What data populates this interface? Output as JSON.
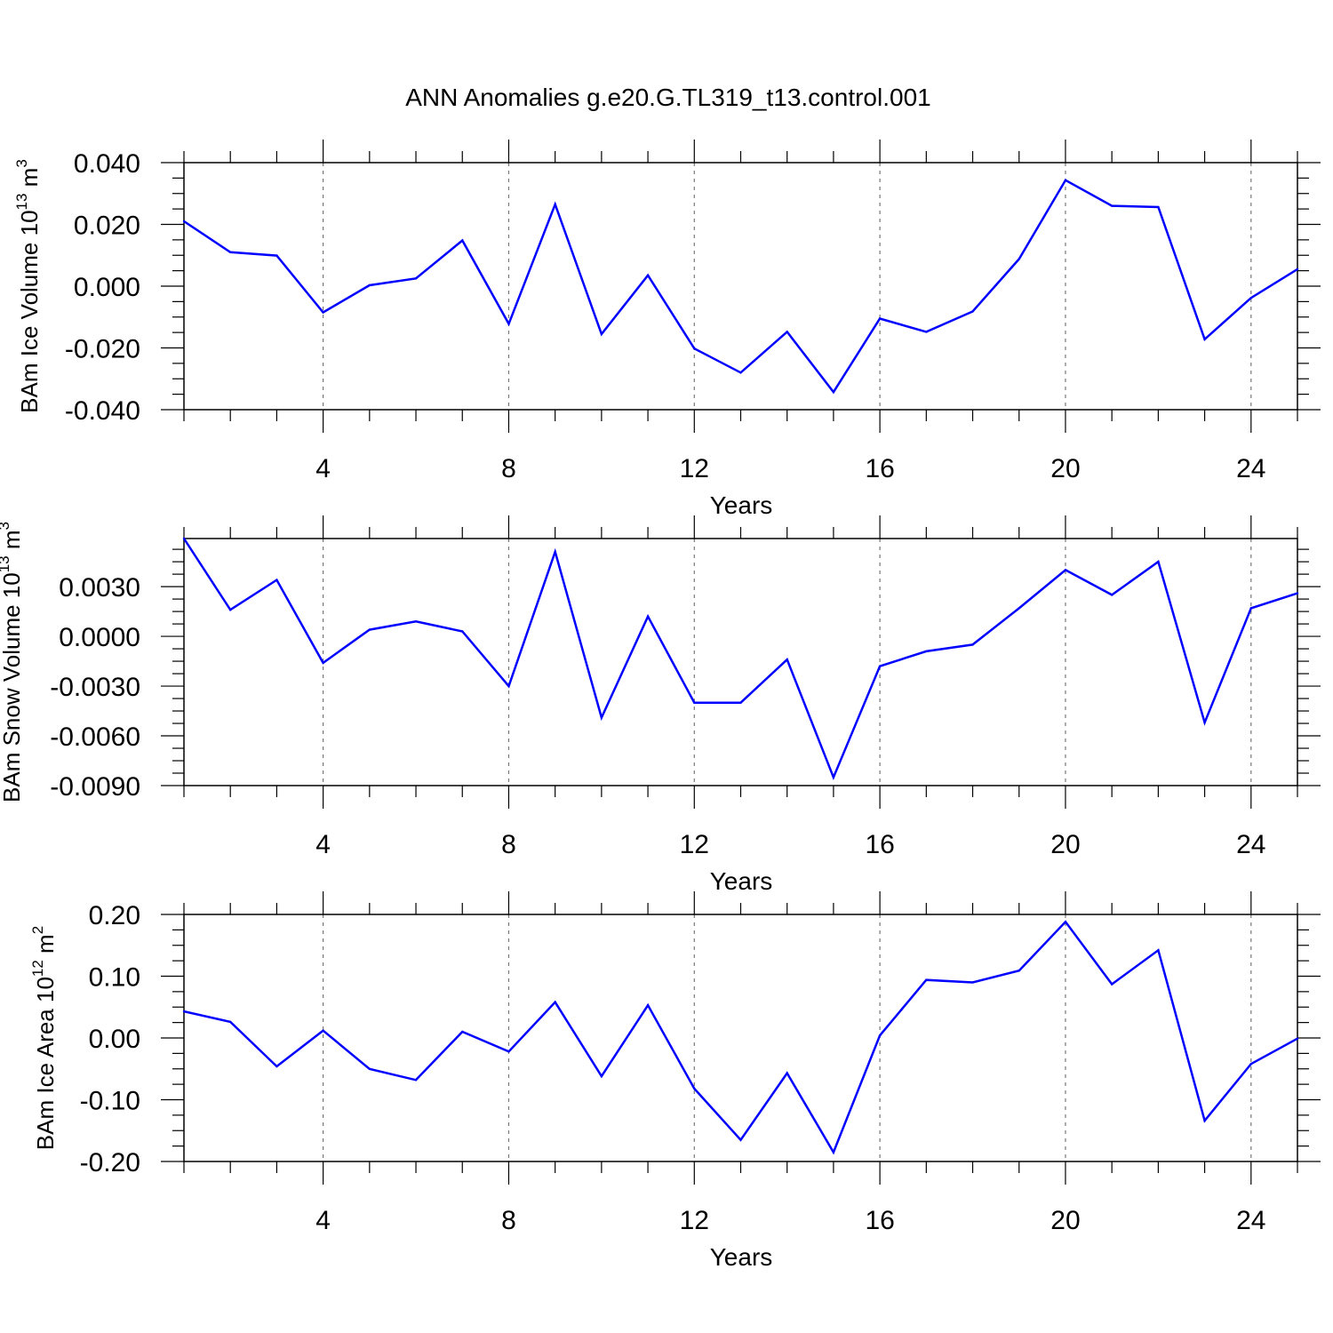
{
  "title": "ANN Anomalies g.e20.G.TL319_t13.control.001",
  "chart_data": [
    {
      "type": "line",
      "name": "ice-volume",
      "ylabel": {
        "text": "BAm Ice Volume 10",
        "sup": "13",
        "unit": " m",
        "unit_sup": "3"
      },
      "xlabel": "Years",
      "xlim": [
        1,
        25
      ],
      "xticks": [
        "4",
        "8",
        "12",
        "16",
        "20",
        "24"
      ],
      "ylim": [
        -0.04,
        0.04
      ],
      "yticks": [
        "-0.040",
        "-0.020",
        "0.000",
        "0.020",
        "0.040"
      ],
      "color": "#0000ff",
      "x": [
        1,
        2,
        3,
        4,
        5,
        6,
        7,
        8,
        9,
        10,
        11,
        12,
        13,
        14,
        15,
        16,
        17,
        18,
        19,
        20,
        21,
        22,
        23,
        24,
        25
      ],
      "values": [
        0.021,
        0.011,
        0.0099,
        -0.0085,
        0.0003,
        0.0025,
        0.0148,
        -0.0122,
        0.0265,
        -0.0155,
        0.0035,
        -0.0202,
        -0.028,
        -0.0148,
        -0.0343,
        -0.0105,
        -0.0148,
        -0.0082,
        0.0088,
        0.0343,
        0.026,
        0.0256,
        -0.0172,
        -0.0038,
        0.0055
      ]
    },
    {
      "type": "line",
      "name": "snow-volume",
      "ylabel": {
        "text": "BAm Snow Volume 10",
        "sup": "13",
        "unit": " m",
        "unit_sup": "3"
      },
      "xlabel": "Years",
      "xlim": [
        1,
        25
      ],
      "xticks": [
        "4",
        "8",
        "12",
        "16",
        "20",
        "24"
      ],
      "ylim": [
        -0.009,
        0.0059
      ],
      "yticks": [
        "-0.0090",
        "-0.0060",
        "-0.0030",
        "0.0000",
        "0.0030"
      ],
      "color": "#0000ff",
      "x": [
        1,
        2,
        3,
        4,
        5,
        6,
        7,
        8,
        9,
        10,
        11,
        12,
        13,
        14,
        15,
        16,
        17,
        18,
        19,
        20,
        21,
        22,
        23,
        24,
        25
      ],
      "values": [
        0.0059,
        0.0016,
        0.0034,
        -0.0016,
        0.0004,
        0.0009,
        0.0003,
        -0.003,
        0.0051,
        -0.0049,
        0.0012,
        -0.004,
        -0.004,
        -0.0014,
        -0.0085,
        -0.0018,
        -0.0009,
        -0.0005,
        0.0017,
        0.004,
        0.0025,
        0.0045,
        -0.0052,
        0.0017,
        0.0026
      ]
    },
    {
      "type": "line",
      "name": "ice-area",
      "ylabel": {
        "text": "BAm Ice Area 10",
        "sup": "12",
        "unit": " m",
        "unit_sup": "2"
      },
      "xlabel": "Years",
      "xlim": [
        1,
        25
      ],
      "xticks": [
        "4",
        "8",
        "12",
        "16",
        "20",
        "24"
      ],
      "ylim": [
        -0.2,
        0.2
      ],
      "yticks": [
        "-0.20",
        "-0.10",
        "0.00",
        "0.10",
        "0.20"
      ],
      "color": "#0000ff",
      "x": [
        1,
        2,
        3,
        4,
        5,
        6,
        7,
        8,
        9,
        10,
        11,
        12,
        13,
        14,
        15,
        16,
        17,
        18,
        19,
        20,
        21,
        22,
        23,
        24,
        25
      ],
      "values": [
        0.043,
        0.026,
        -0.046,
        0.012,
        -0.05,
        -0.068,
        0.01,
        -0.022,
        0.058,
        -0.062,
        0.053,
        -0.082,
        -0.165,
        -0.057,
        -0.185,
        0.004,
        0.094,
        0.09,
        0.109,
        0.188,
        0.087,
        0.142,
        -0.134,
        -0.042,
        -0.001
      ]
    }
  ]
}
